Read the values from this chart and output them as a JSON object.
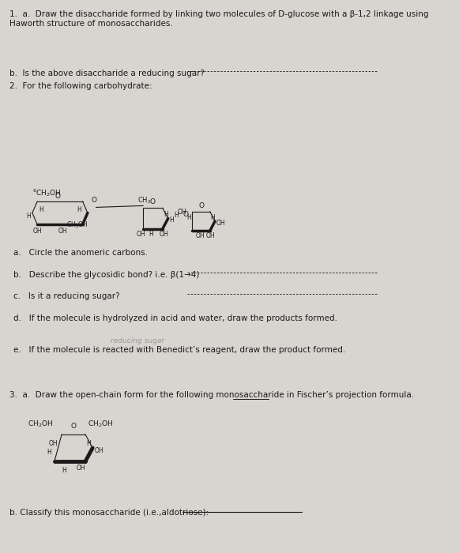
{
  "bg_color": "#d8d4cf",
  "text_color": "#1a1a1a",
  "q1a_line1": "1.  a.  Draw the disaccharide formed by linking two molecules of D-glucose with a β-1,2 linkage using",
  "q1a_line2": "Haworth structure of monosaccharides.",
  "q1b": "b.  Is the above disaccharide a reducing sugar?",
  "q2": "2.  For the following carbohydrate:",
  "q2a": "a.   Circle the anomeric carbons.",
  "q2b": "b.   Describe the glycosidic bond? i.e. β(1→4)",
  "q2c": "c.   Is it a reducing sugar?",
  "q2d": "d.   If the molecule is hydrolyzed in acid and water, draw the products formed.",
  "q2e_hw": "reducing sugar",
  "q2e": "e.   If the molecule is reacted with Benedict’s reagent, draw the product formed.",
  "q3a": "3.  a.  Draw the open-chain form for the following monosaccharide in Fischer’s projection formula.",
  "q3b": "b. Classify this monosaccharide (i.e.,aldotriose): "
}
